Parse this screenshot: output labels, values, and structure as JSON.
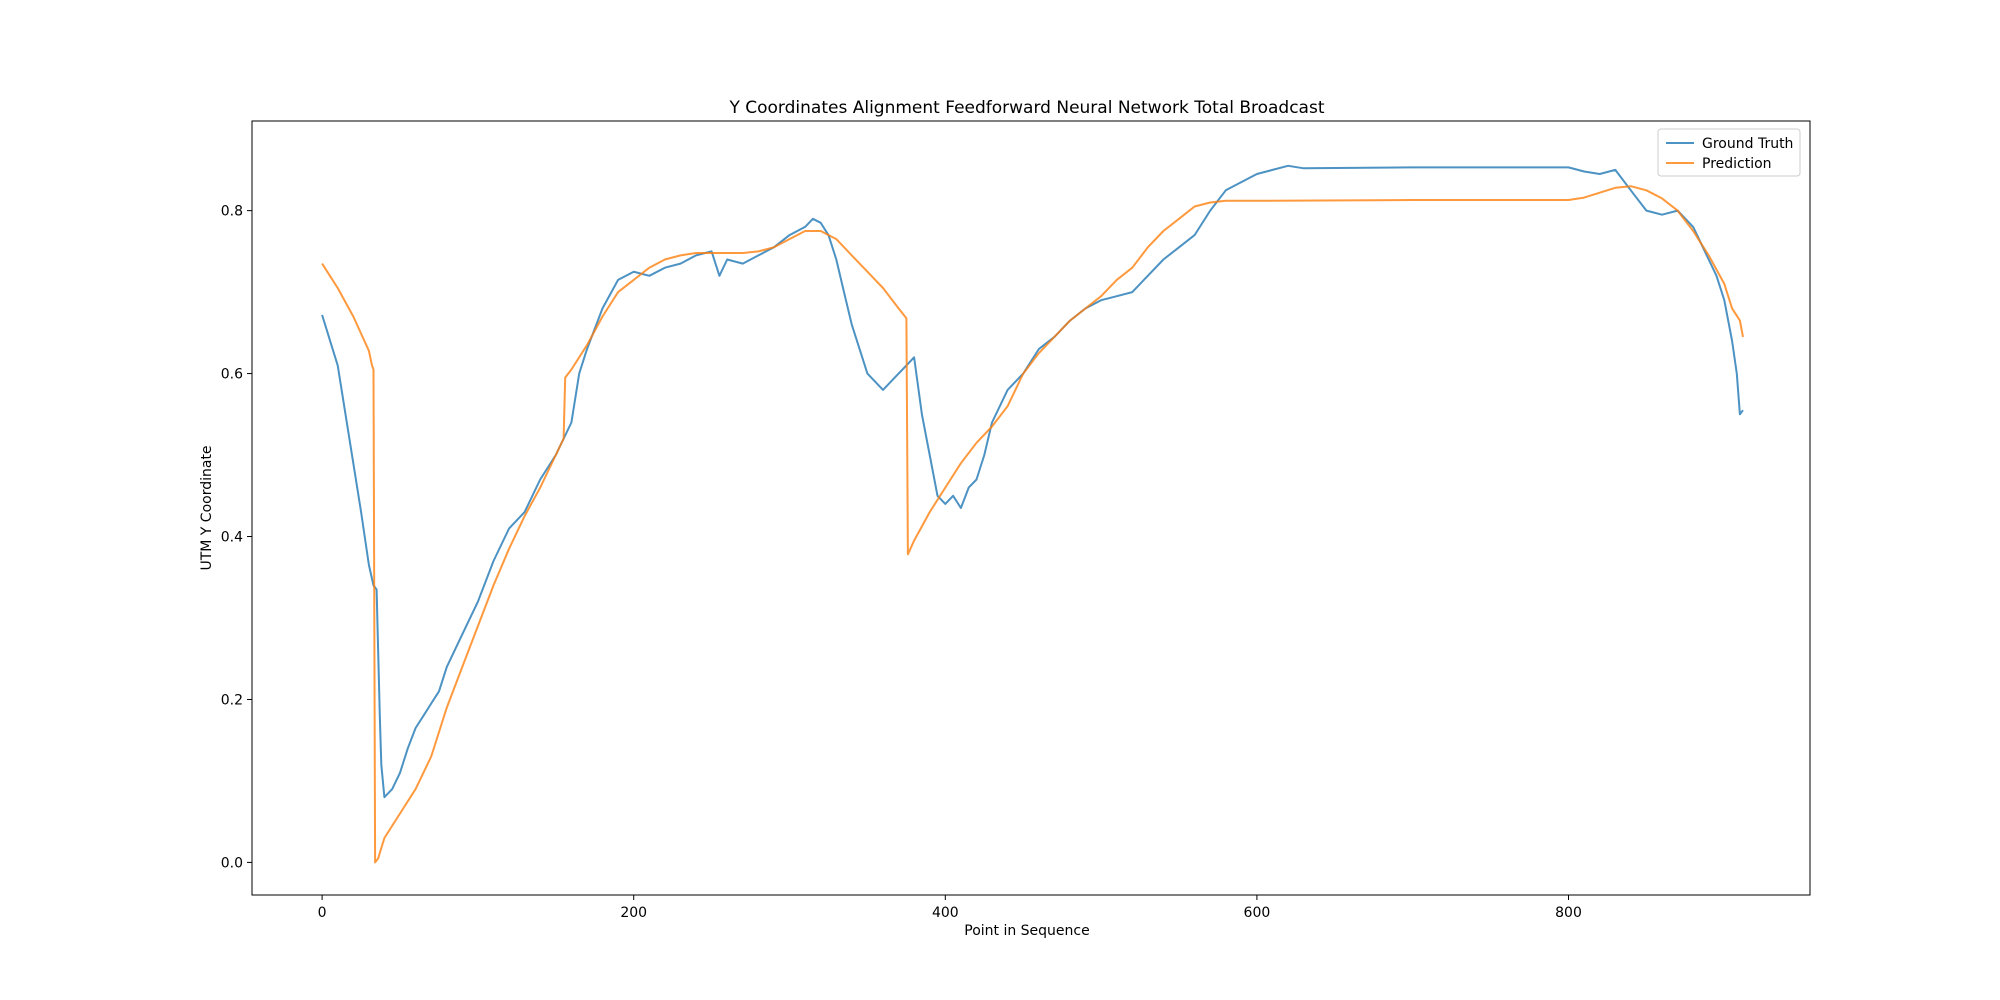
{
  "chart_data": {
    "type": "line",
    "title": "Y Coordinates Alignment Feedforward Neural Network Total Broadcast",
    "xlabel": "Point in Sequence",
    "ylabel": "UTM Y Coordinate",
    "xlim": [
      -45,
      955
    ],
    "ylim": [
      -0.04,
      0.91
    ],
    "xticks": [
      0,
      200,
      400,
      600,
      800
    ],
    "xtick_labels": [
      "0",
      "200",
      "400",
      "600",
      "800"
    ],
    "yticks": [
      0.0,
      0.2,
      0.4,
      0.6,
      0.8
    ],
    "ytick_labels": [
      "0.0",
      "0.2",
      "0.4",
      "0.6",
      "0.8"
    ],
    "grid": false,
    "legend": {
      "position": "top-right"
    },
    "series": [
      {
        "name": "Ground Truth",
        "color": "#1f77b4",
        "points": [
          [
            0,
            0.672
          ],
          [
            10,
            0.61
          ],
          [
            20,
            0.49
          ],
          [
            25,
            0.43
          ],
          [
            30,
            0.365
          ],
          [
            33,
            0.34
          ],
          [
            35,
            0.335
          ],
          [
            37,
            0.18
          ],
          [
            38,
            0.12
          ],
          [
            40,
            0.08
          ],
          [
            45,
            0.09
          ],
          [
            50,
            0.11
          ],
          [
            55,
            0.14
          ],
          [
            60,
            0.165
          ],
          [
            65,
            0.18
          ],
          [
            70,
            0.195
          ],
          [
            75,
            0.21
          ],
          [
            80,
            0.24
          ],
          [
            90,
            0.28
          ],
          [
            100,
            0.32
          ],
          [
            110,
            0.37
          ],
          [
            120,
            0.41
          ],
          [
            130,
            0.43
          ],
          [
            140,
            0.47
          ],
          [
            150,
            0.5
          ],
          [
            160,
            0.54
          ],
          [
            165,
            0.6
          ],
          [
            170,
            0.63
          ],
          [
            180,
            0.68
          ],
          [
            190,
            0.715
          ],
          [
            200,
            0.725
          ],
          [
            210,
            0.72
          ],
          [
            220,
            0.73
          ],
          [
            230,
            0.735
          ],
          [
            240,
            0.745
          ],
          [
            250,
            0.75
          ],
          [
            255,
            0.72
          ],
          [
            260,
            0.74
          ],
          [
            270,
            0.735
          ],
          [
            280,
            0.745
          ],
          [
            290,
            0.755
          ],
          [
            300,
            0.77
          ],
          [
            310,
            0.78
          ],
          [
            315,
            0.79
          ],
          [
            320,
            0.785
          ],
          [
            325,
            0.77
          ],
          [
            330,
            0.74
          ],
          [
            335,
            0.7
          ],
          [
            340,
            0.66
          ],
          [
            345,
            0.63
          ],
          [
            350,
            0.6
          ],
          [
            355,
            0.59
          ],
          [
            360,
            0.58
          ],
          [
            365,
            0.59
          ],
          [
            370,
            0.6
          ],
          [
            375,
            0.61
          ],
          [
            380,
            0.62
          ],
          [
            385,
            0.55
          ],
          [
            390,
            0.5
          ],
          [
            395,
            0.45
          ],
          [
            400,
            0.44
          ],
          [
            405,
            0.45
          ],
          [
            410,
            0.435
          ],
          [
            415,
            0.46
          ],
          [
            420,
            0.47
          ],
          [
            425,
            0.5
          ],
          [
            430,
            0.54
          ],
          [
            440,
            0.58
          ],
          [
            450,
            0.6
          ],
          [
            460,
            0.63
          ],
          [
            470,
            0.645
          ],
          [
            480,
            0.665
          ],
          [
            490,
            0.68
          ],
          [
            500,
            0.69
          ],
          [
            510,
            0.695
          ],
          [
            520,
            0.7
          ],
          [
            530,
            0.72
          ],
          [
            540,
            0.74
          ],
          [
            550,
            0.755
          ],
          [
            560,
            0.77
          ],
          [
            570,
            0.8
          ],
          [
            580,
            0.825
          ],
          [
            590,
            0.835
          ],
          [
            600,
            0.845
          ],
          [
            610,
            0.85
          ],
          [
            620,
            0.855
          ],
          [
            630,
            0.852
          ],
          [
            700,
            0.853
          ],
          [
            800,
            0.853
          ],
          [
            810,
            0.848
          ],
          [
            820,
            0.845
          ],
          [
            830,
            0.85
          ],
          [
            840,
            0.825
          ],
          [
            850,
            0.8
          ],
          [
            860,
            0.795
          ],
          [
            870,
            0.8
          ],
          [
            880,
            0.78
          ],
          [
            890,
            0.74
          ],
          [
            895,
            0.72
          ],
          [
            900,
            0.69
          ],
          [
            905,
            0.64
          ],
          [
            908,
            0.6
          ],
          [
            910,
            0.55
          ],
          [
            912,
            0.555
          ]
        ]
      },
      {
        "name": "Prediction",
        "color": "#ff7f0e",
        "points": [
          [
            0,
            0.735
          ],
          [
            5,
            0.72
          ],
          [
            10,
            0.705
          ],
          [
            20,
            0.67
          ],
          [
            30,
            0.628
          ],
          [
            32,
            0.61
          ],
          [
            33,
            0.605
          ],
          [
            34,
            0.0
          ],
          [
            36,
            0.005
          ],
          [
            40,
            0.03
          ],
          [
            50,
            0.06
          ],
          [
            60,
            0.09
          ],
          [
            70,
            0.13
          ],
          [
            80,
            0.19
          ],
          [
            90,
            0.24
          ],
          [
            100,
            0.29
          ],
          [
            110,
            0.34
          ],
          [
            120,
            0.385
          ],
          [
            130,
            0.425
          ],
          [
            140,
            0.46
          ],
          [
            150,
            0.5
          ],
          [
            155,
            0.52
          ],
          [
            156,
            0.595
          ],
          [
            160,
            0.605
          ],
          [
            170,
            0.635
          ],
          [
            180,
            0.67
          ],
          [
            190,
            0.7
          ],
          [
            200,
            0.715
          ],
          [
            210,
            0.73
          ],
          [
            220,
            0.74
          ],
          [
            230,
            0.745
          ],
          [
            240,
            0.748
          ],
          [
            250,
            0.748
          ],
          [
            260,
            0.748
          ],
          [
            270,
            0.748
          ],
          [
            280,
            0.75
          ],
          [
            290,
            0.755
          ],
          [
            300,
            0.765
          ],
          [
            310,
            0.775
          ],
          [
            320,
            0.775
          ],
          [
            330,
            0.765
          ],
          [
            340,
            0.745
          ],
          [
            350,
            0.725
          ],
          [
            360,
            0.705
          ],
          [
            370,
            0.68
          ],
          [
            375,
            0.668
          ],
          [
            376,
            0.378
          ],
          [
            380,
            0.395
          ],
          [
            390,
            0.43
          ],
          [
            400,
            0.46
          ],
          [
            410,
            0.49
          ],
          [
            420,
            0.515
          ],
          [
            430,
            0.535
          ],
          [
            440,
            0.56
          ],
          [
            450,
            0.6
          ],
          [
            460,
            0.625
          ],
          [
            470,
            0.645
          ],
          [
            480,
            0.665
          ],
          [
            490,
            0.68
          ],
          [
            500,
            0.695
          ],
          [
            510,
            0.715
          ],
          [
            520,
            0.73
          ],
          [
            530,
            0.755
          ],
          [
            540,
            0.775
          ],
          [
            550,
            0.79
          ],
          [
            560,
            0.805
          ],
          [
            570,
            0.81
          ],
          [
            580,
            0.812
          ],
          [
            600,
            0.812
          ],
          [
            700,
            0.813
          ],
          [
            800,
            0.813
          ],
          [
            810,
            0.816
          ],
          [
            820,
            0.822
          ],
          [
            830,
            0.828
          ],
          [
            840,
            0.83
          ],
          [
            850,
            0.825
          ],
          [
            860,
            0.815
          ],
          [
            870,
            0.8
          ],
          [
            880,
            0.775
          ],
          [
            890,
            0.745
          ],
          [
            900,
            0.71
          ],
          [
            905,
            0.68
          ],
          [
            910,
            0.665
          ],
          [
            912,
            0.645
          ]
        ]
      }
    ]
  }
}
